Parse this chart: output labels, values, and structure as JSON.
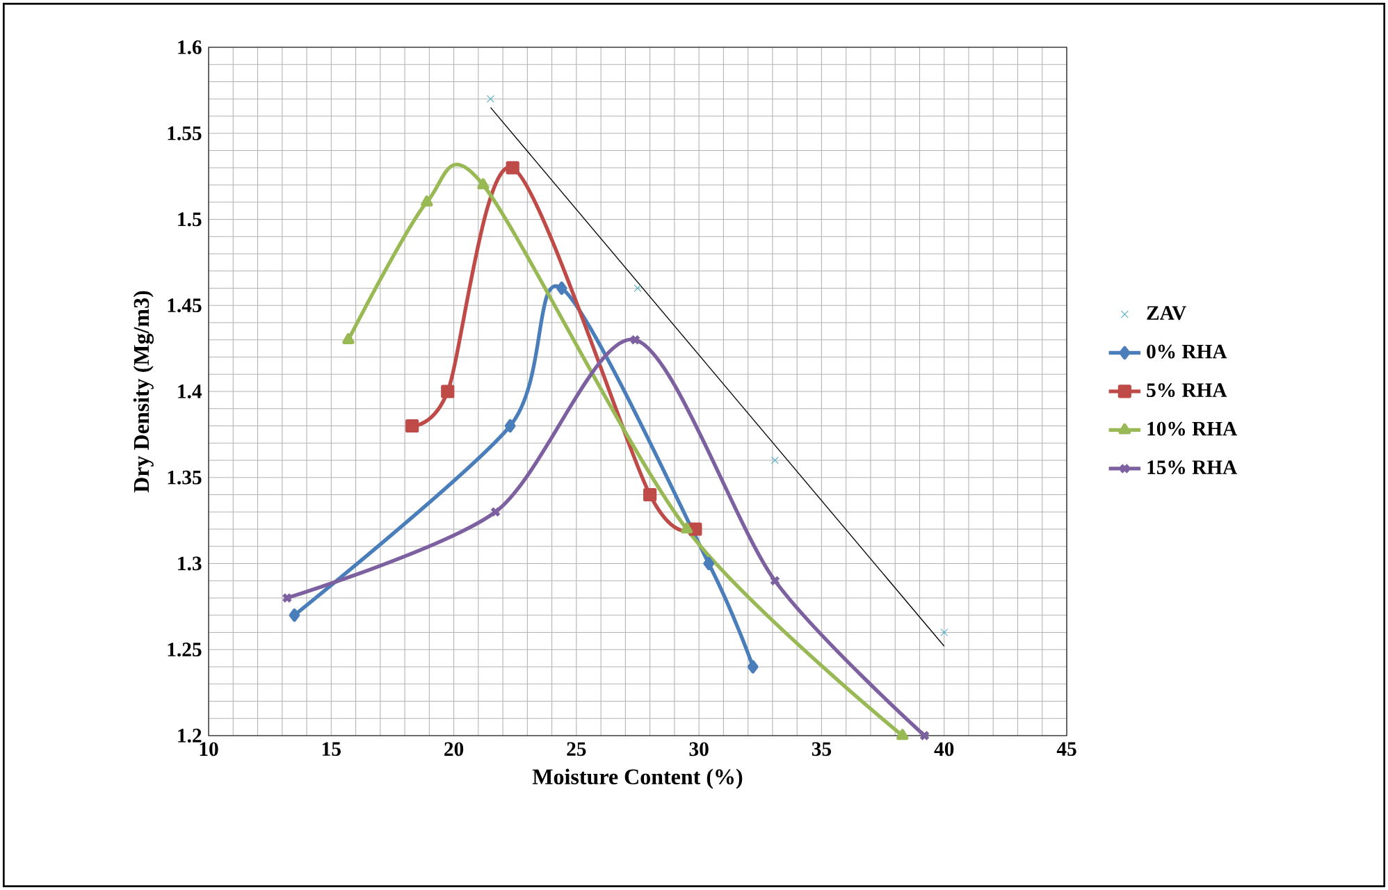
{
  "chart_data": {
    "type": "line",
    "xlabel": "Moisture Content (%)",
    "ylabel": "Dry Density (Mg/m3)",
    "xlim": [
      10,
      45
    ],
    "xticks": [
      10,
      15,
      20,
      25,
      30,
      35,
      40,
      45
    ],
    "ylim": [
      1.2,
      1.6
    ],
    "yticks": [
      1.2,
      1.25,
      1.3,
      1.35,
      1.4,
      1.45,
      1.5,
      1.55,
      1.6
    ],
    "grid": true,
    "legend": "right",
    "series": [
      {
        "name": "ZAV",
        "type": "scatter",
        "marker": "cross",
        "color": "#4bacc6",
        "x": [
          21.5,
          27.5,
          33.1,
          40
        ],
        "values": [
          1.57,
          1.46,
          1.36,
          1.26
        ]
      },
      {
        "name": "0% RHA",
        "marker": "diamond",
        "color": "#4a7ebb",
        "x": [
          13.5,
          22.3,
          24.4,
          30.4,
          32.2
        ],
        "values": [
          1.27,
          1.38,
          1.46,
          1.3,
          1.24
        ]
      },
      {
        "name": "5% RHA",
        "marker": "square",
        "color": "#be4b48",
        "x": [
          18.3,
          19.75,
          22.4,
          28.0,
          29.85
        ],
        "values": [
          1.38,
          1.4,
          1.53,
          1.34,
          1.32
        ]
      },
      {
        "name": "10% RHA",
        "marker": "triangle",
        "color": "#98b954",
        "x": [
          15.7,
          18.9,
          21.2,
          29.5,
          38.3
        ],
        "values": [
          1.43,
          1.51,
          1.52,
          1.32,
          1.2
        ]
      },
      {
        "name": "15% RHA",
        "marker": "cross",
        "color": "#7d60a0",
        "x": [
          13.2,
          21.7,
          27.4,
          33.1,
          39.2
        ],
        "values": [
          1.28,
          1.33,
          1.43,
          1.29,
          1.2
        ]
      },
      {
        "type": "line",
        "marker": "none",
        "color": "#000000",
        "x": [
          21.5,
          40
        ],
        "values": [
          1.565,
          1.252
        ]
      }
    ]
  }
}
